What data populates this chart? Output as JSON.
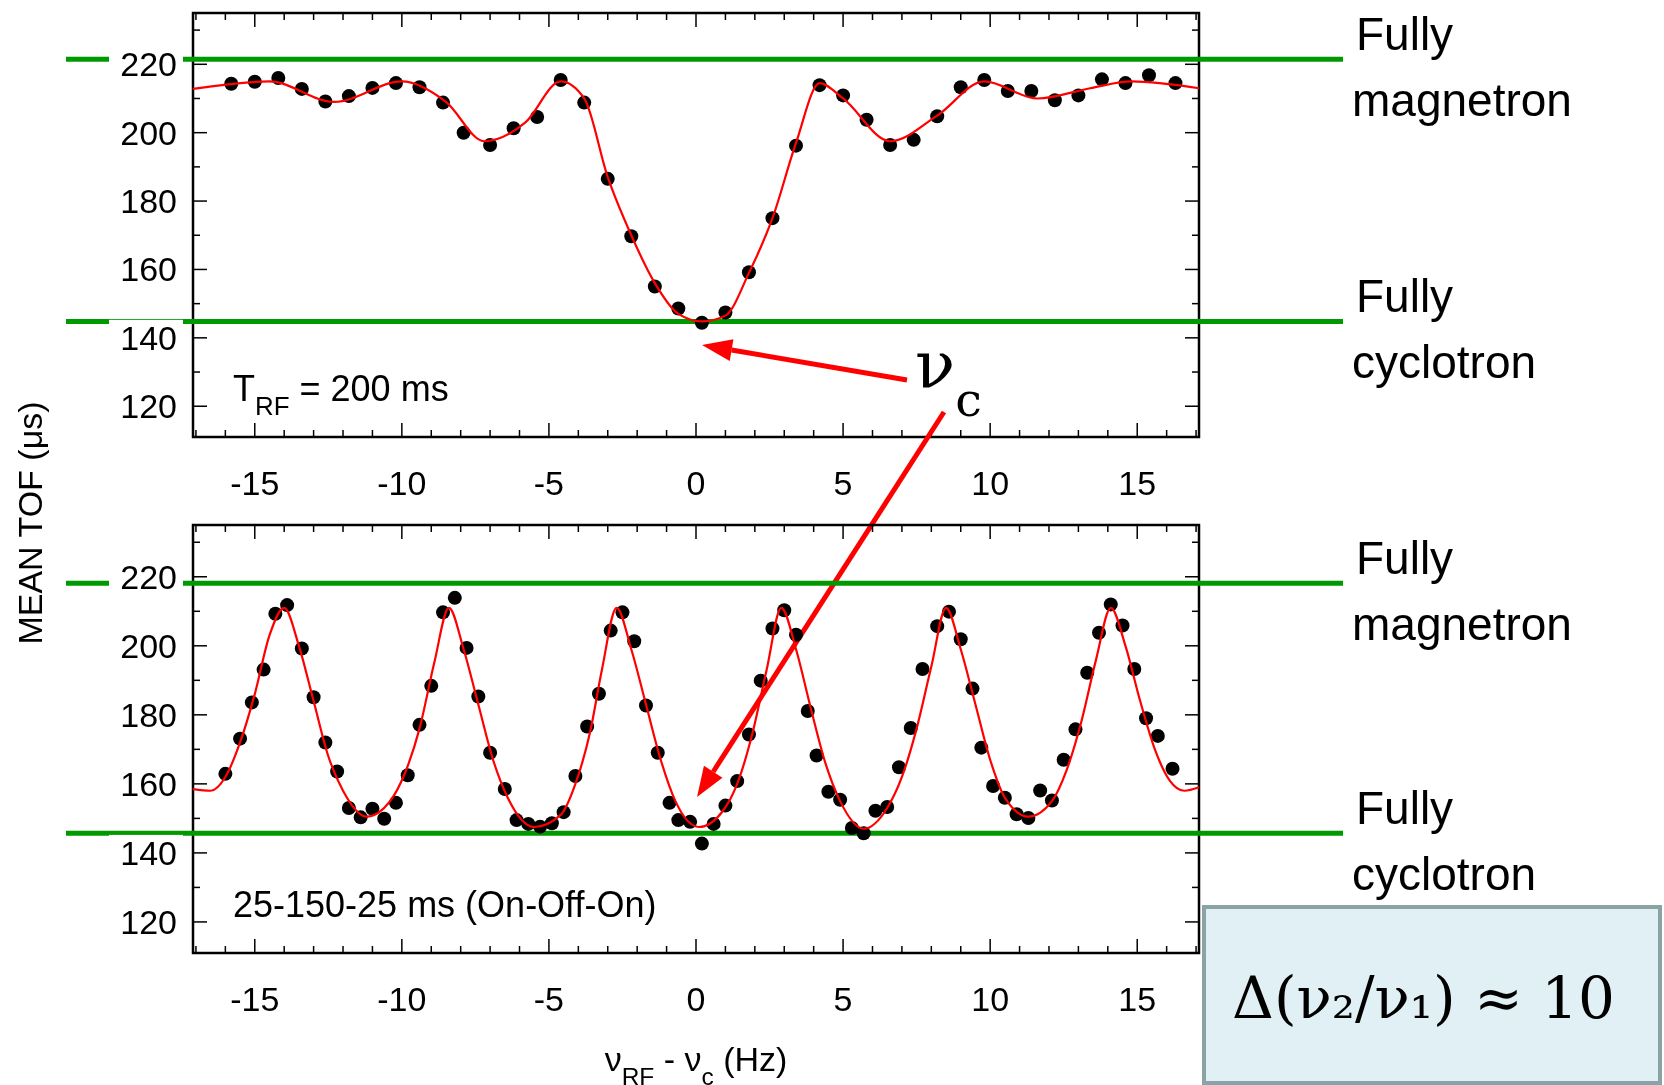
{
  "chart_data": [
    {
      "type": "scatter",
      "ylabel": "MEAN TOF (μs)",
      "grid": false,
      "xlim": [
        -17.1,
        17.1
      ],
      "ylim": [
        111,
        235
      ],
      "xticks": [
        {
          "value": -17,
          "label": null
        },
        {
          "value": -16,
          "label": null
        },
        -15,
        {
          "value": -14,
          "label": null
        },
        {
          "value": -13,
          "label": null
        },
        {
          "value": -12,
          "label": null
        },
        {
          "value": -11,
          "label": null
        },
        -10,
        {
          "value": -9,
          "label": null
        },
        {
          "value": -8,
          "label": null
        },
        {
          "value": -7,
          "label": null
        },
        {
          "value": -6,
          "label": null
        },
        -5,
        {
          "value": -4,
          "label": null
        },
        {
          "value": -3,
          "label": null
        },
        {
          "value": -2,
          "label": null
        },
        {
          "value": -1,
          "label": null
        },
        0,
        {
          "value": 1,
          "label": null
        },
        {
          "value": 2,
          "label": null
        },
        {
          "value": 3,
          "label": null
        },
        {
          "value": 4,
          "label": null
        },
        5,
        {
          "value": 6,
          "label": null
        },
        {
          "value": 7,
          "label": null
        },
        {
          "value": 8,
          "label": null
        },
        {
          "value": 9,
          "label": null
        },
        10,
        {
          "value": 11,
          "label": null
        },
        {
          "value": 12,
          "label": null
        },
        {
          "value": 13,
          "label": null
        },
        {
          "value": 14,
          "label": null
        },
        15,
        {
          "value": 16,
          "label": null
        },
        {
          "value": 17,
          "label": null
        }
      ],
      "yticks": [
        120,
        {
          "value": 130,
          "label": null
        },
        140,
        {
          "value": 150,
          "label": null
        },
        160,
        {
          "value": 170,
          "label": null
        },
        180,
        {
          "value": 190,
          "label": null
        },
        200,
        {
          "value": 210,
          "label": null
        },
        220,
        {
          "value": 230,
          "label": null
        }
      ],
      "series": [
        {
          "color": "#000000",
          "marker": "circle",
          "x": [
            -15.8,
            -15.0,
            -14.2,
            -13.4,
            -12.6,
            -11.8,
            -11.0,
            -10.2,
            -9.4,
            -8.6,
            -7.9,
            -7.0,
            -6.2,
            -5.4,
            -4.6,
            -3.8,
            -3.0,
            -2.2,
            -1.4,
            -0.6,
            0.2,
            1.0,
            1.8,
            2.6,
            3.4,
            4.2,
            5.0,
            5.8,
            6.6,
            7.4,
            8.2,
            9.0,
            9.8,
            10.6,
            11.4,
            12.2,
            13.0,
            13.8,
            14.6,
            15.4,
            16.3
          ],
          "values": [
            214.3,
            214.9,
            216,
            212.8,
            209.1,
            210.7,
            213.1,
            214.5,
            213.3,
            208.8,
            200,
            196.4,
            201.3,
            204.6,
            215.4,
            208.8,
            186.5,
            169.7,
            155,
            148.6,
            144.4,
            147.4,
            159.2,
            175,
            196.2,
            213.9,
            210.9,
            203.8,
            196.4,
            197.9,
            204.8,
            213.3,
            215.4,
            212.2,
            212.2,
            209.5,
            210.9,
            215.6,
            214.5,
            216.8,
            214.5
          ]
        },
        {
          "type": "line",
          "marker": "none",
          "color": "#ff0000",
          "x": [
            -17.1,
            -14.5,
            -12.3,
            -10,
            -8.5,
            -7.2,
            -5.8,
            -4.6,
            -3.8,
            -3,
            -2.2,
            -1.4,
            -0.6,
            0.2,
            1,
            1.8,
            2.6,
            3.4,
            4.2,
            5,
            6.6,
            8.2,
            9.8,
            11.6,
            13.4,
            14.8,
            17.1
          ],
          "values": [
            212.8,
            215,
            209,
            215,
            209,
            197.5,
            203,
            215,
            210,
            187,
            170,
            156,
            147,
            144.8,
            146.5,
            159,
            175,
            197,
            214.5,
            210,
            197.5,
            205,
            215,
            210,
            213,
            215,
            213
          ]
        }
      ],
      "ref_lines": [
        {
          "axis": "y",
          "value": 221.5,
          "label": "Fully magnetron",
          "color": "#009900"
        },
        {
          "axis": "y",
          "value": 144.8,
          "label": "Fully cyclotron",
          "color": "#009900"
        }
      ],
      "annotations": [
        "T$_{RF}$ = 200 ms",
        "ν$_{c}$"
      ]
    },
    {
      "type": "scatter",
      "xlabel": "ν$_{RF}$ - ν$_{c}$ (Hz)",
      "grid": false,
      "xlim": [
        -17.1,
        17.1
      ],
      "ylim": [
        111,
        235
      ],
      "xticks": [
        {
          "value": -17,
          "label": null
        },
        {
          "value": -16,
          "label": null
        },
        -15,
        {
          "value": -14,
          "label": null
        },
        {
          "value": -13,
          "label": null
        },
        {
          "value": -12,
          "label": null
        },
        {
          "value": -11,
          "label": null
        },
        -10,
        {
          "value": -9,
          "label": null
        },
        {
          "value": -8,
          "label": null
        },
        {
          "value": -7,
          "label": null
        },
        {
          "value": -6,
          "label": null
        },
        -5,
        {
          "value": -4,
          "label": null
        },
        {
          "value": -3,
          "label": null
        },
        {
          "value": -2,
          "label": null
        },
        {
          "value": -1,
          "label": null
        },
        0,
        {
          "value": 1,
          "label": null
        },
        {
          "value": 2,
          "label": null
        },
        {
          "value": 3,
          "label": null
        },
        {
          "value": 4,
          "label": null
        },
        5,
        {
          "value": 6,
          "label": null
        },
        {
          "value": 7,
          "label": null
        },
        {
          "value": 8,
          "label": null
        },
        {
          "value": 9,
          "label": null
        },
        10,
        {
          "value": 11,
          "label": null
        },
        {
          "value": 12,
          "label": null
        },
        {
          "value": 13,
          "label": null
        },
        {
          "value": 14,
          "label": null
        },
        15,
        {
          "value": 16,
          "label": null
        },
        {
          "value": 17,
          "label": null
        }
      ],
      "yticks": [
        120,
        {
          "value": 130,
          "label": null
        },
        140,
        {
          "value": 150,
          "label": null
        },
        160,
        {
          "value": 170,
          "label": null
        },
        180,
        {
          "value": 190,
          "label": null
        },
        200,
        {
          "value": 210,
          "label": null
        },
        220,
        {
          "value": 230,
          "label": null
        }
      ],
      "series": [
        {
          "color": "#000000",
          "marker": "circle",
          "x": [
            -16.0,
            -15.5,
            -15.1,
            -14.7,
            -14.3,
            -13.9,
            -13.4,
            -13.0,
            -12.6,
            -12.2,
            -11.8,
            -11.4,
            -11.0,
            -10.6,
            -10.2,
            -9.8,
            -9.4,
            -9.0,
            -8.6,
            -8.2,
            -7.8,
            -7.4,
            -7.0,
            -6.5,
            -6.1,
            -5.7,
            -5.3,
            -4.9,
            -4.5,
            -4.1,
            -3.7,
            -3.3,
            -2.9,
            -2.5,
            -2.1,
            -1.7,
            -1.3,
            -0.9,
            -0.6,
            -0.2,
            0.2,
            0.6,
            1.0,
            1.4,
            1.8,
            2.2,
            2.6,
            3.0,
            3.4,
            3.8,
            4.1,
            4.5,
            4.9,
            5.3,
            5.7,
            6.1,
            6.5,
            6.9,
            7.3,
            7.7,
            8.2,
            8.6,
            9.0,
            9.4,
            9.7,
            10.1,
            10.5,
            10.9,
            11.3,
            11.7,
            12.1,
            12.5,
            12.9,
            13.3,
            13.7,
            14.1,
            14.5,
            14.9,
            15.3,
            15.7,
            16.2
          ],
          "values": [
            162.9,
            173.1,
            183.6,
            193.1,
            209.3,
            211.8,
            199.2,
            185.1,
            172,
            163.6,
            153,
            150.3,
            152.8,
            149.9,
            154.5,
            162.5,
            177.1,
            188.4,
            209.7,
            213.9,
            199.4,
            185.3,
            169,
            158.5,
            149.5,
            148.4,
            147.6,
            148.6,
            151.8,
            162.3,
            176.6,
            186.1,
            204.4,
            209.7,
            201.3,
            182.7,
            169,
            154.5,
            149.5,
            149,
            142.7,
            148.4,
            153.7,
            160.8,
            174.3,
            189.9,
            205,
            210.3,
            203.2,
            181.1,
            168.2,
            157.7,
            155.4,
            147.2,
            145.7,
            152.2,
            153.3,
            164.8,
            176.2,
            193.3,
            205.7,
            209.9,
            201.9,
            187.6,
            170.5,
            159.4,
            156,
            151.2,
            150.1,
            158.1,
            155.2,
            167,
            175.8,
            192.2,
            203.8,
            212,
            205.9,
            193.3,
            179,
            173.9,
            164.4
          ]
        },
        {
          "type": "line",
          "marker": "none",
          "color": "#ff0000",
          "x": [
            -17.1,
            -16.5,
            -16,
            -15.5,
            -15,
            -14.5,
            -14,
            -13.5,
            -13,
            -12.5,
            -12,
            -11.2,
            -10.4,
            -9.9,
            -9.4,
            -8.9,
            -8.4,
            -7.9,
            -7.4,
            -6.9,
            -6.4,
            -5.5,
            -4.6,
            -4.1,
            -3.6,
            -3.2,
            -2.7,
            -2.2,
            -1.7,
            -1.2,
            -0.7,
            0.1,
            0.9,
            1.4,
            1.9,
            2.4,
            2.9,
            3.4,
            3.9,
            4.4,
            4.9,
            5.7,
            6.5,
            7,
            7.5,
            8,
            8.5,
            9,
            9.5,
            10,
            10.5,
            11.3,
            12.1,
            12.6,
            13.1,
            13.6,
            14.1,
            14.6,
            15.1,
            15.6,
            16.1,
            16.6,
            17.1
          ],
          "values": [
            158.5,
            158,
            162,
            172,
            186,
            203,
            211,
            200,
            184,
            168,
            158,
            150.5,
            155,
            163,
            176,
            195,
            211,
            199,
            183,
            167,
            156,
            147.5,
            151,
            160,
            175,
            193,
            211,
            199,
            183,
            167,
            155,
            147.5,
            152,
            160,
            174,
            193,
            211,
            199,
            182,
            166,
            155,
            147,
            153,
            162,
            176,
            194,
            211,
            199,
            183,
            167,
            156,
            150.5,
            155,
            164,
            178,
            196,
            211,
            200,
            184,
            170,
            161,
            158,
            159
          ]
        }
      ],
      "ref_lines": [
        {
          "axis": "y",
          "value": 218.1,
          "label": "Fully magnetron",
          "color": "#009900"
        },
        {
          "axis": "y",
          "value": 145.7,
          "label": "Fully cyclotron",
          "color": "#009900"
        }
      ],
      "annotations": [
        "25-150-25 ms (On-Off-On)",
        "Δ(ν₂/ν₁) ≈ 10"
      ]
    }
  ]
}
